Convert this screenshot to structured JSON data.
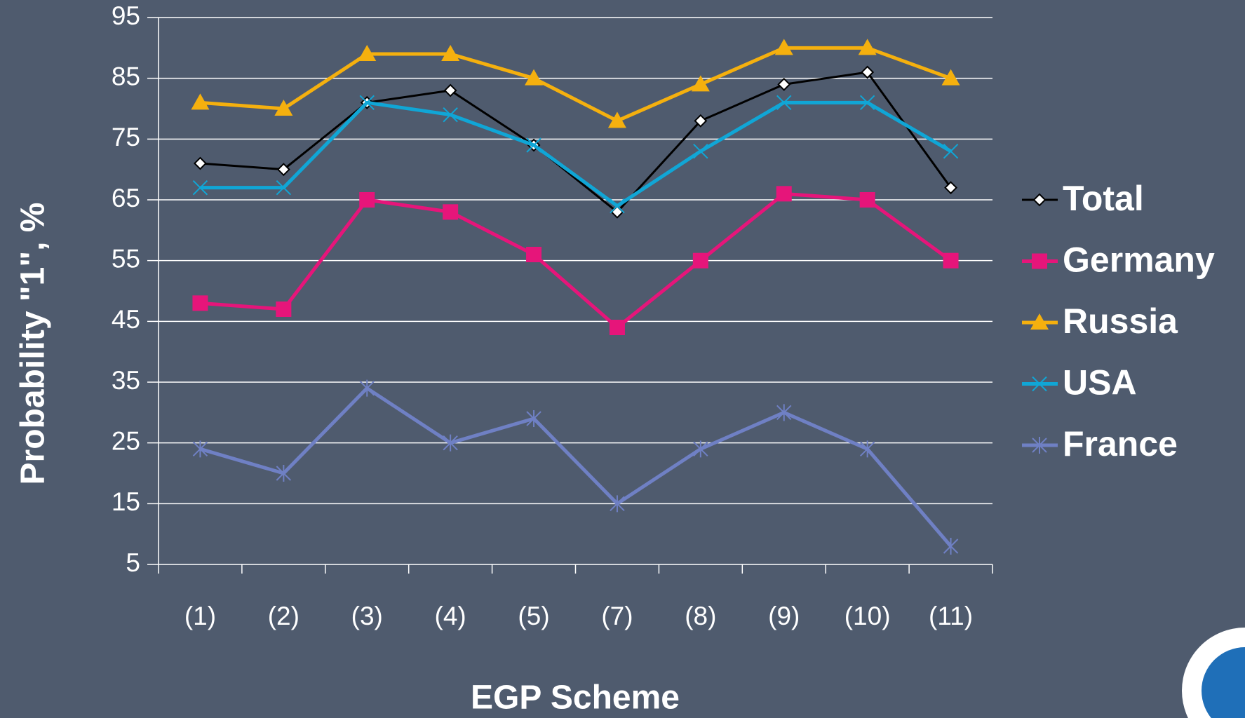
{
  "chart_data": {
    "type": "line",
    "y_label": "Probability \"1\", %",
    "x_label": "EGP Scheme",
    "categories": [
      "(1)",
      "(2)",
      "(3)",
      "(4)",
      "(5)",
      "(7)",
      "(8)",
      "(9)",
      "(10)",
      "(11)"
    ],
    "series": [
      {
        "name": "Total",
        "color": "#000000",
        "marker": "diamond",
        "values": [
          71,
          70,
          81,
          83,
          74,
          63,
          78,
          84,
          86,
          67
        ]
      },
      {
        "name": "Germany",
        "color": "#e6157a",
        "marker": "square",
        "values": [
          48,
          47,
          65,
          63,
          56,
          44,
          55,
          66,
          65,
          55
        ]
      },
      {
        "name": "Russia",
        "color": "#f5b00e",
        "marker": "triangle",
        "values": [
          81,
          80,
          89,
          89,
          85,
          78,
          84,
          90,
          90,
          85
        ]
      },
      {
        "name": "USA",
        "color": "#10a6d6",
        "marker": "x",
        "values": [
          67,
          67,
          81,
          79,
          74,
          64,
          73,
          81,
          81,
          73
        ]
      },
      {
        "name": "France",
        "color": "#6f80c4",
        "marker": "star",
        "values": [
          24,
          20,
          34,
          25,
          29,
          15,
          24,
          30,
          24,
          8
        ]
      }
    ],
    "ylim": [
      5,
      95
    ],
    "yticks": [
      5,
      15,
      25,
      35,
      45,
      55,
      65,
      75,
      85,
      95
    ],
    "grid": true,
    "legend": "right"
  }
}
